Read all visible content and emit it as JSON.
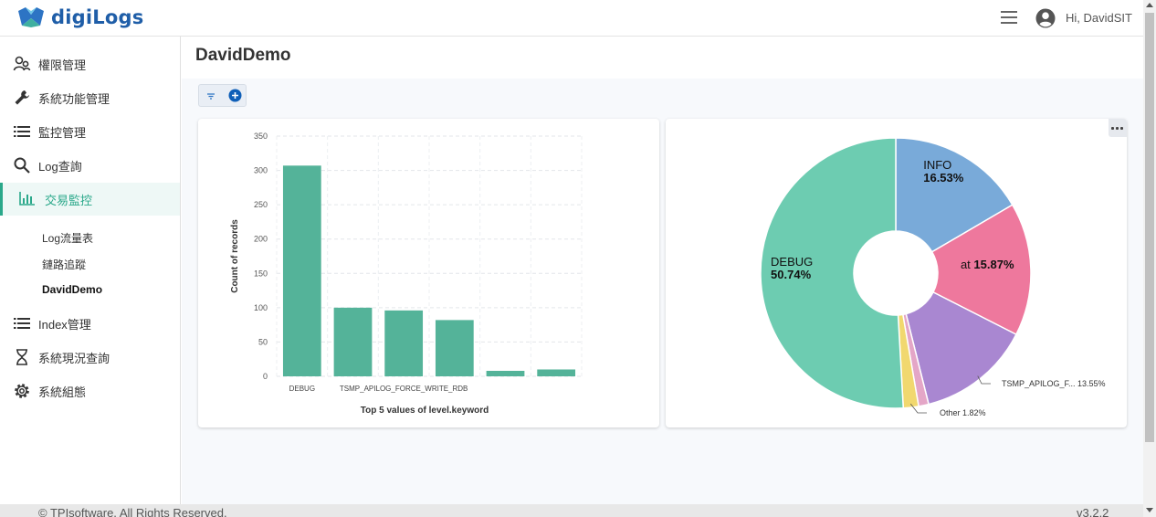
{
  "header": {
    "logo_text": "digiLogs",
    "user_greeting": "Hi, DavidSIT",
    "brand_color": "#1f5ea8"
  },
  "sidebar": {
    "items": [
      {
        "label": "權限管理",
        "icon": "users-icon"
      },
      {
        "label": "系統功能管理",
        "icon": "wrench-icon"
      },
      {
        "label": "監控管理",
        "icon": "list-icon"
      },
      {
        "label": "Log查詢",
        "icon": "search-icon"
      },
      {
        "label": "交易監控",
        "icon": "bar-chart-icon",
        "active": true
      },
      {
        "label": "Index管理",
        "icon": "list-icon"
      },
      {
        "label": "系統現況查詢",
        "icon": "hourglass-icon"
      },
      {
        "label": "系統組態",
        "icon": "gear-icon"
      }
    ],
    "sub_items": [
      {
        "label": "Log流量表"
      },
      {
        "label": "鏈路追蹤"
      },
      {
        "label": "DavidDemo",
        "current": true
      }
    ],
    "active_color": "#2aa88a"
  },
  "main": {
    "title": "DavidDemo"
  },
  "chart_data": [
    {
      "type": "bar",
      "categories": [
        "DEBUG",
        "",
        "TSMP_APILOG_FORCE_WRITE_RDB",
        "",
        "",
        ""
      ],
      "values": [
        307,
        100,
        96,
        82,
        8,
        10
      ],
      "xlabel": "Top 5 values of level.keyword",
      "ylabel": "Count of records",
      "ylim": [
        0,
        350
      ],
      "yticks": [
        0,
        50,
        100,
        150,
        200,
        250,
        300,
        350
      ],
      "grid": true,
      "color": "#54b399"
    },
    {
      "type": "pie",
      "donut": true,
      "slices": [
        {
          "label": "INFO",
          "value": 16.53,
          "pct_label": "16.53%",
          "color": "#79aad9"
        },
        {
          "label": "at",
          "value": 15.87,
          "pct_label": "15.87%",
          "color": "#ee789d"
        },
        {
          "label": "TSMP_APILOG_F...",
          "value": 13.55,
          "pct_label": "13.55%",
          "color": "#a987d1"
        },
        {
          "label": "",
          "value": 1.2,
          "pct_label": "",
          "color": "#e4a6c7"
        },
        {
          "label": "Other",
          "value": 1.82,
          "pct_label": "1.82%",
          "color": "#f1d86f"
        },
        {
          "label": "DEBUG",
          "value": 50.74,
          "pct_label": "50.74%",
          "color": "#6dccb1"
        }
      ]
    }
  ],
  "footer": {
    "copyright": "© TPIsoftware. All Rights Reserved.",
    "version": "v3.2.2"
  }
}
